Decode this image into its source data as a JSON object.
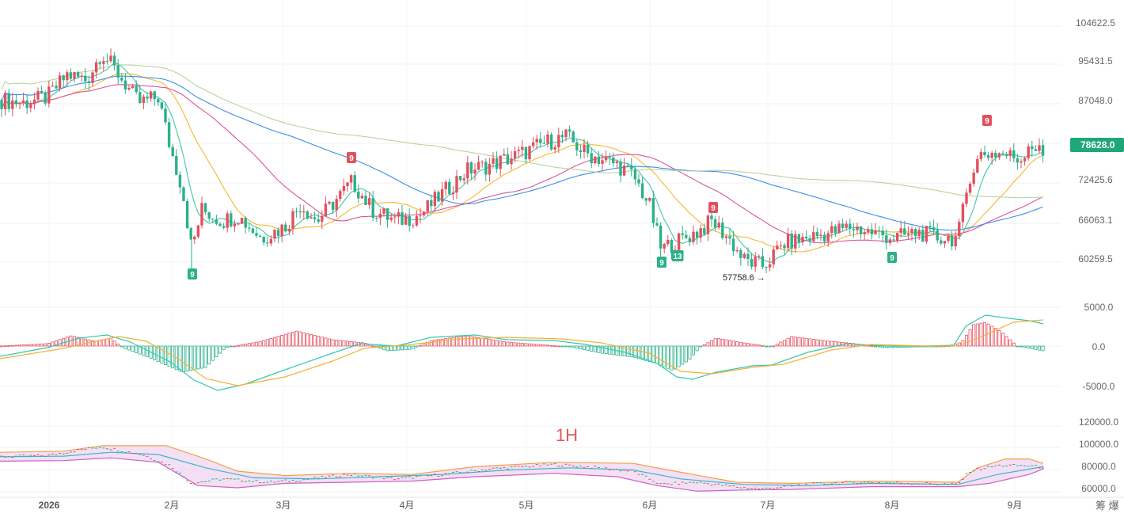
{
  "price_axis": {
    "labels": [
      "104622.5",
      "95431.5",
      "87048.0",
      "72425.6",
      "66063.1",
      "60259.5"
    ],
    "current_price": "78628.0",
    "current_price_color": "#1fa67a"
  },
  "macd_axis": {
    "labels": [
      "5000.0",
      "0.0",
      "-5000.0"
    ]
  },
  "boll_axis": {
    "labels": [
      "120000.0",
      "100000.0",
      "80000.0",
      "60000.0"
    ]
  },
  "time_axis": {
    "labels": [
      "2026",
      "2月",
      "3月",
      "4月",
      "5月",
      "6月",
      "7月",
      "8月",
      "9月"
    ]
  },
  "timeframe": "1H",
  "corner_text": "筹 爆",
  "annotations": {
    "min_label": "57758.6 →",
    "td_markers": [
      {
        "text": "9",
        "kind": "buy"
      },
      {
        "text": "9",
        "kind": "sell"
      },
      {
        "text": "9",
        "kind": "buy"
      },
      {
        "text": "13",
        "kind": "buy"
      },
      {
        "text": "9",
        "kind": "sell"
      },
      {
        "text": "9",
        "kind": "buy"
      },
      {
        "text": "9",
        "kind": "sell"
      }
    ]
  },
  "colors": {
    "up": "#e2515f",
    "down": "#2bb08a",
    "ma_fast": "#3ec9a6",
    "ma_mid": "#f5b731",
    "ma_pink": "#d9569a",
    "ma_blue": "#3a8ee8",
    "ma_sage": "#b9d3a0",
    "macd_dif": "#36c8b0",
    "macd_dea": "#f2b233",
    "boll_upper": "#f2a045",
    "boll_lower": "#d060c0",
    "boll_mid": "#40b4c8",
    "boll_fill": "#f0d8f2"
  },
  "chart_data": {
    "type": "candlestick",
    "timeframe": "1H",
    "year": "2026",
    "months": [
      "2026",
      "2月",
      "3月",
      "4月",
      "5月",
      "6月",
      "7月",
      "8月",
      "9月"
    ],
    "price_ticks": [
      104622.5,
      95431.5,
      87048.0,
      72425.6,
      66063.1,
      60259.5
    ],
    "current_price": 78628.0,
    "period_low": 57758.6,
    "ohlc_path": [
      [
        0,
        88500
      ],
      [
        30,
        88000
      ],
      [
        60,
        89000
      ],
      [
        85,
        93000
      ],
      [
        110,
        92000
      ],
      [
        128,
        97000
      ],
      [
        150,
        93000
      ],
      [
        175,
        88000
      ],
      [
        200,
        89000
      ],
      [
        215,
        80000
      ],
      [
        230,
        73000
      ],
      [
        242,
        62000
      ],
      [
        255,
        69000
      ],
      [
        280,
        67000
      ],
      [
        300,
        68000
      ],
      [
        330,
        64000
      ],
      [
        360,
        66000
      ],
      [
        380,
        70000
      ],
      [
        400,
        67000
      ],
      [
        420,
        70000
      ],
      [
        445,
        74000
      ],
      [
        470,
        69000
      ],
      [
        500,
        67000
      ],
      [
        530,
        68000
      ],
      [
        560,
        72000
      ],
      [
        590,
        76000
      ],
      [
        620,
        77000
      ],
      [
        660,
        79000
      ],
      [
        690,
        81000
      ],
      [
        715,
        82000
      ],
      [
        740,
        79000
      ],
      [
        780,
        77000
      ],
      [
        800,
        75000
      ],
      [
        820,
        70000
      ],
      [
        835,
        62000
      ],
      [
        850,
        63000
      ],
      [
        880,
        65000
      ],
      [
        900,
        67000
      ],
      [
        920,
        64000
      ],
      [
        940,
        60000
      ],
      [
        965,
        59000
      ],
      [
        990,
        63000
      ],
      [
        1020,
        64000
      ],
      [
        1050,
        65000
      ],
      [
        1075,
        66000
      ],
      [
        1100,
        65000
      ],
      [
        1130,
        64000
      ],
      [
        1160,
        65000
      ],
      [
        1185,
        64000
      ],
      [
        1210,
        64000
      ],
      [
        1225,
        75000
      ],
      [
        1240,
        79000
      ],
      [
        1265,
        79000
      ],
      [
        1290,
        78000
      ],
      [
        1300,
        81000
      ],
      [
        1318,
        78628
      ]
    ],
    "macd": {
      "ticks": [
        5000.0,
        0.0,
        -5000.0
      ],
      "histogram_path": [
        [
          0,
          0
        ],
        [
          60,
          300
        ],
        [
          90,
          1300
        ],
        [
          120,
          600
        ],
        [
          140,
          1000
        ],
        [
          155,
          -200
        ],
        [
          190,
          -1500
        ],
        [
          230,
          -3300
        ],
        [
          260,
          -2700
        ],
        [
          285,
          -200
        ],
        [
          330,
          600
        ],
        [
          375,
          1900
        ],
        [
          420,
          800
        ],
        [
          460,
          400
        ],
        [
          490,
          -600
        ],
        [
          520,
          -400
        ],
        [
          545,
          700
        ],
        [
          590,
          1300
        ],
        [
          640,
          500
        ],
        [
          680,
          200
        ],
        [
          720,
          -100
        ],
        [
          760,
          -900
        ],
        [
          800,
          -1400
        ],
        [
          830,
          -2200
        ],
        [
          850,
          -3100
        ],
        [
          870,
          -1800
        ],
        [
          885,
          -100
        ],
        [
          905,
          1000
        ],
        [
          940,
          400
        ],
        [
          975,
          -100
        ],
        [
          1000,
          1200
        ],
        [
          1040,
          700
        ],
        [
          1080,
          300
        ],
        [
          1120,
          -200
        ],
        [
          1160,
          -100
        ],
        [
          1200,
          50
        ],
        [
          1215,
          500
        ],
        [
          1230,
          2700
        ],
        [
          1245,
          3000
        ],
        [
          1265,
          1800
        ],
        [
          1285,
          0
        ],
        [
          1318,
          -600
        ]
      ],
      "dif_path": [
        [
          0,
          -1300
        ],
        [
          60,
          -200
        ],
        [
          100,
          1000
        ],
        [
          135,
          1400
        ],
        [
          165,
          500
        ],
        [
          215,
          -2000
        ],
        [
          245,
          -4300
        ],
        [
          275,
          -5600
        ],
        [
          310,
          -4800
        ],
        [
          360,
          -3000
        ],
        [
          420,
          -900
        ],
        [
          455,
          300
        ],
        [
          500,
          0
        ],
        [
          545,
          1100
        ],
        [
          600,
          1400
        ],
        [
          640,
          800
        ],
        [
          700,
          700
        ],
        [
          740,
          200
        ],
        [
          790,
          -800
        ],
        [
          830,
          -2200
        ],
        [
          855,
          -3900
        ],
        [
          875,
          -4200
        ],
        [
          905,
          -3300
        ],
        [
          950,
          -2500
        ],
        [
          975,
          -2400
        ],
        [
          1020,
          -800
        ],
        [
          1070,
          300
        ],
        [
          1120,
          0
        ],
        [
          1170,
          0
        ],
        [
          1205,
          100
        ],
        [
          1220,
          2500
        ],
        [
          1245,
          3900
        ],
        [
          1275,
          3500
        ],
        [
          1300,
          3200
        ],
        [
          1318,
          2800
        ]
      ],
      "dea_path": [
        [
          0,
          -1600
        ],
        [
          80,
          -300
        ],
        [
          120,
          600
        ],
        [
          150,
          1200
        ],
        [
          185,
          600
        ],
        [
          225,
          -1600
        ],
        [
          260,
          -4100
        ],
        [
          300,
          -5000
        ],
        [
          360,
          -3900
        ],
        [
          420,
          -1900
        ],
        [
          460,
          -300
        ],
        [
          520,
          200
        ],
        [
          580,
          900
        ],
        [
          640,
          1100
        ],
        [
          710,
          900
        ],
        [
          760,
          400
        ],
        [
          820,
          -900
        ],
        [
          860,
          -3200
        ],
        [
          900,
          -3500
        ],
        [
          950,
          -2700
        ],
        [
          990,
          -2300
        ],
        [
          1050,
          -500
        ],
        [
          1100,
          200
        ],
        [
          1170,
          0
        ],
        [
          1210,
          0
        ],
        [
          1240,
          1200
        ],
        [
          1280,
          3000
        ],
        [
          1318,
          3300
        ]
      ]
    },
    "boll": {
      "ticks": [
        120000.0,
        100000.0,
        80000.0,
        60000.0
      ],
      "price_path": [
        [
          0,
          88000
        ],
        [
          60,
          89000
        ],
        [
          100,
          94000
        ],
        [
          128,
          97000
        ],
        [
          180,
          90000
        ],
        [
          215,
          80000
        ],
        [
          242,
          64000
        ],
        [
          280,
          68000
        ],
        [
          340,
          65000
        ],
        [
          380,
          67000
        ],
        [
          440,
          72000
        ],
        [
          500,
          68000
        ],
        [
          560,
          72000
        ],
        [
          620,
          77000
        ],
        [
          700,
          81000
        ],
        [
          740,
          79000
        ],
        [
          800,
          75000
        ],
        [
          835,
          63000
        ],
        [
          880,
          65000
        ],
        [
          940,
          60000
        ],
        [
          965,
          59000
        ],
        [
          1020,
          63000
        ],
        [
          1080,
          65000
        ],
        [
          1160,
          64000
        ],
        [
          1210,
          63000
        ],
        [
          1225,
          75000
        ],
        [
          1260,
          80000
        ],
        [
          1295,
          80000
        ],
        [
          1318,
          78600
        ]
      ],
      "upper_path": [
        [
          0,
          92000
        ],
        [
          80,
          93000
        ],
        [
          130,
          98000
        ],
        [
          210,
          98000
        ],
        [
          260,
          86000
        ],
        [
          300,
          75000
        ],
        [
          360,
          71000
        ],
        [
          440,
          73000
        ],
        [
          520,
          72000
        ],
        [
          600,
          79000
        ],
        [
          700,
          83000
        ],
        [
          800,
          82000
        ],
        [
          860,
          74000
        ],
        [
          930,
          65000
        ],
        [
          1000,
          64000
        ],
        [
          1100,
          66000
        ],
        [
          1210,
          65000
        ],
        [
          1235,
          78000
        ],
        [
          1270,
          86000
        ],
        [
          1300,
          86000
        ],
        [
          1318,
          82000
        ]
      ],
      "mid_path": [
        [
          0,
          88000
        ],
        [
          80,
          88500
        ],
        [
          140,
          92000
        ],
        [
          200,
          90000
        ],
        [
          260,
          78000
        ],
        [
          320,
          69000
        ],
        [
          400,
          68000
        ],
        [
          480,
          70000
        ],
        [
          560,
          72000
        ],
        [
          640,
          76000
        ],
        [
          720,
          78000
        ],
        [
          800,
          76000
        ],
        [
          860,
          68000
        ],
        [
          940,
          63000
        ],
        [
          1020,
          62000
        ],
        [
          1100,
          64000
        ],
        [
          1210,
          63000
        ],
        [
          1260,
          72000
        ],
        [
          1318,
          79000
        ]
      ],
      "lower_path": [
        [
          0,
          84000
        ],
        [
          80,
          84500
        ],
        [
          140,
          87000
        ],
        [
          200,
          83000
        ],
        [
          250,
          62000
        ],
        [
          300,
          60000
        ],
        [
          360,
          64000
        ],
        [
          440,
          65000
        ],
        [
          520,
          66000
        ],
        [
          600,
          70000
        ],
        [
          700,
          73000
        ],
        [
          780,
          70000
        ],
        [
          830,
          62000
        ],
        [
          880,
          57000
        ],
        [
          940,
          58000
        ],
        [
          1000,
          58500
        ],
        [
          1100,
          61000
        ],
        [
          1210,
          61000
        ],
        [
          1250,
          64000
        ],
        [
          1300,
          72000
        ],
        [
          1318,
          77000
        ]
      ]
    },
    "grid": true
  }
}
